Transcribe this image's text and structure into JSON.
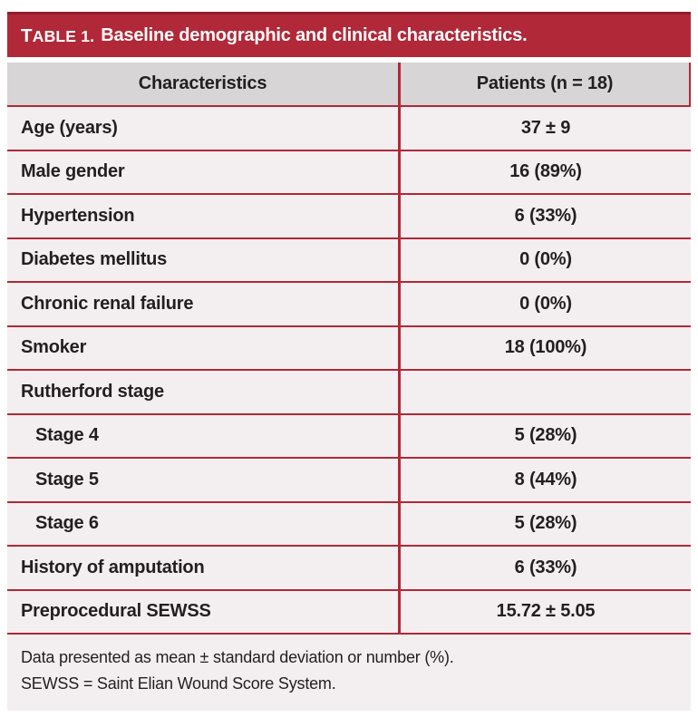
{
  "colors": {
    "accent_red": "#b12838",
    "accent_red_dark": "#8f1f2c",
    "header_gray": "#d7d5d6",
    "row_bg": "#f3eff0",
    "text": "#231f20",
    "title_text": "#ffffff"
  },
  "table": {
    "title_label": "TABLE 1.",
    "title_text": "Baseline demographic and clinical characteristics.",
    "columns": [
      "Characteristics",
      "Patients (n = 18)"
    ],
    "rows": [
      {
        "label": "Age (years)",
        "value": "37 ± 9",
        "indent": false
      },
      {
        "label": "Male gender",
        "value": "16 (89%)",
        "indent": false
      },
      {
        "label": "Hypertension",
        "value": "6 (33%)",
        "indent": false
      },
      {
        "label": "Diabetes mellitus",
        "value": "0 (0%)",
        "indent": false
      },
      {
        "label": "Chronic renal failure",
        "value": "0 (0%)",
        "indent": false
      },
      {
        "label": "Smoker",
        "value": "18 (100%)",
        "indent": false
      },
      {
        "label": "Rutherford stage",
        "value": "",
        "indent": false
      },
      {
        "label": "Stage 4",
        "value": "5 (28%)",
        "indent": true
      },
      {
        "label": "Stage 5",
        "value": "8 (44%)",
        "indent": true
      },
      {
        "label": "Stage 6",
        "value": "5 (28%)",
        "indent": true
      },
      {
        "label": "History of amputation",
        "value": "6 (33%)",
        "indent": false
      },
      {
        "label": "Preprocedural SEWSS",
        "value": "15.72 ± 5.05",
        "indent": false
      }
    ],
    "footnotes": [
      "Data presented as mean ± standard deviation or number (%).",
      "SEWSS = Saint Elian Wound Score System."
    ]
  }
}
